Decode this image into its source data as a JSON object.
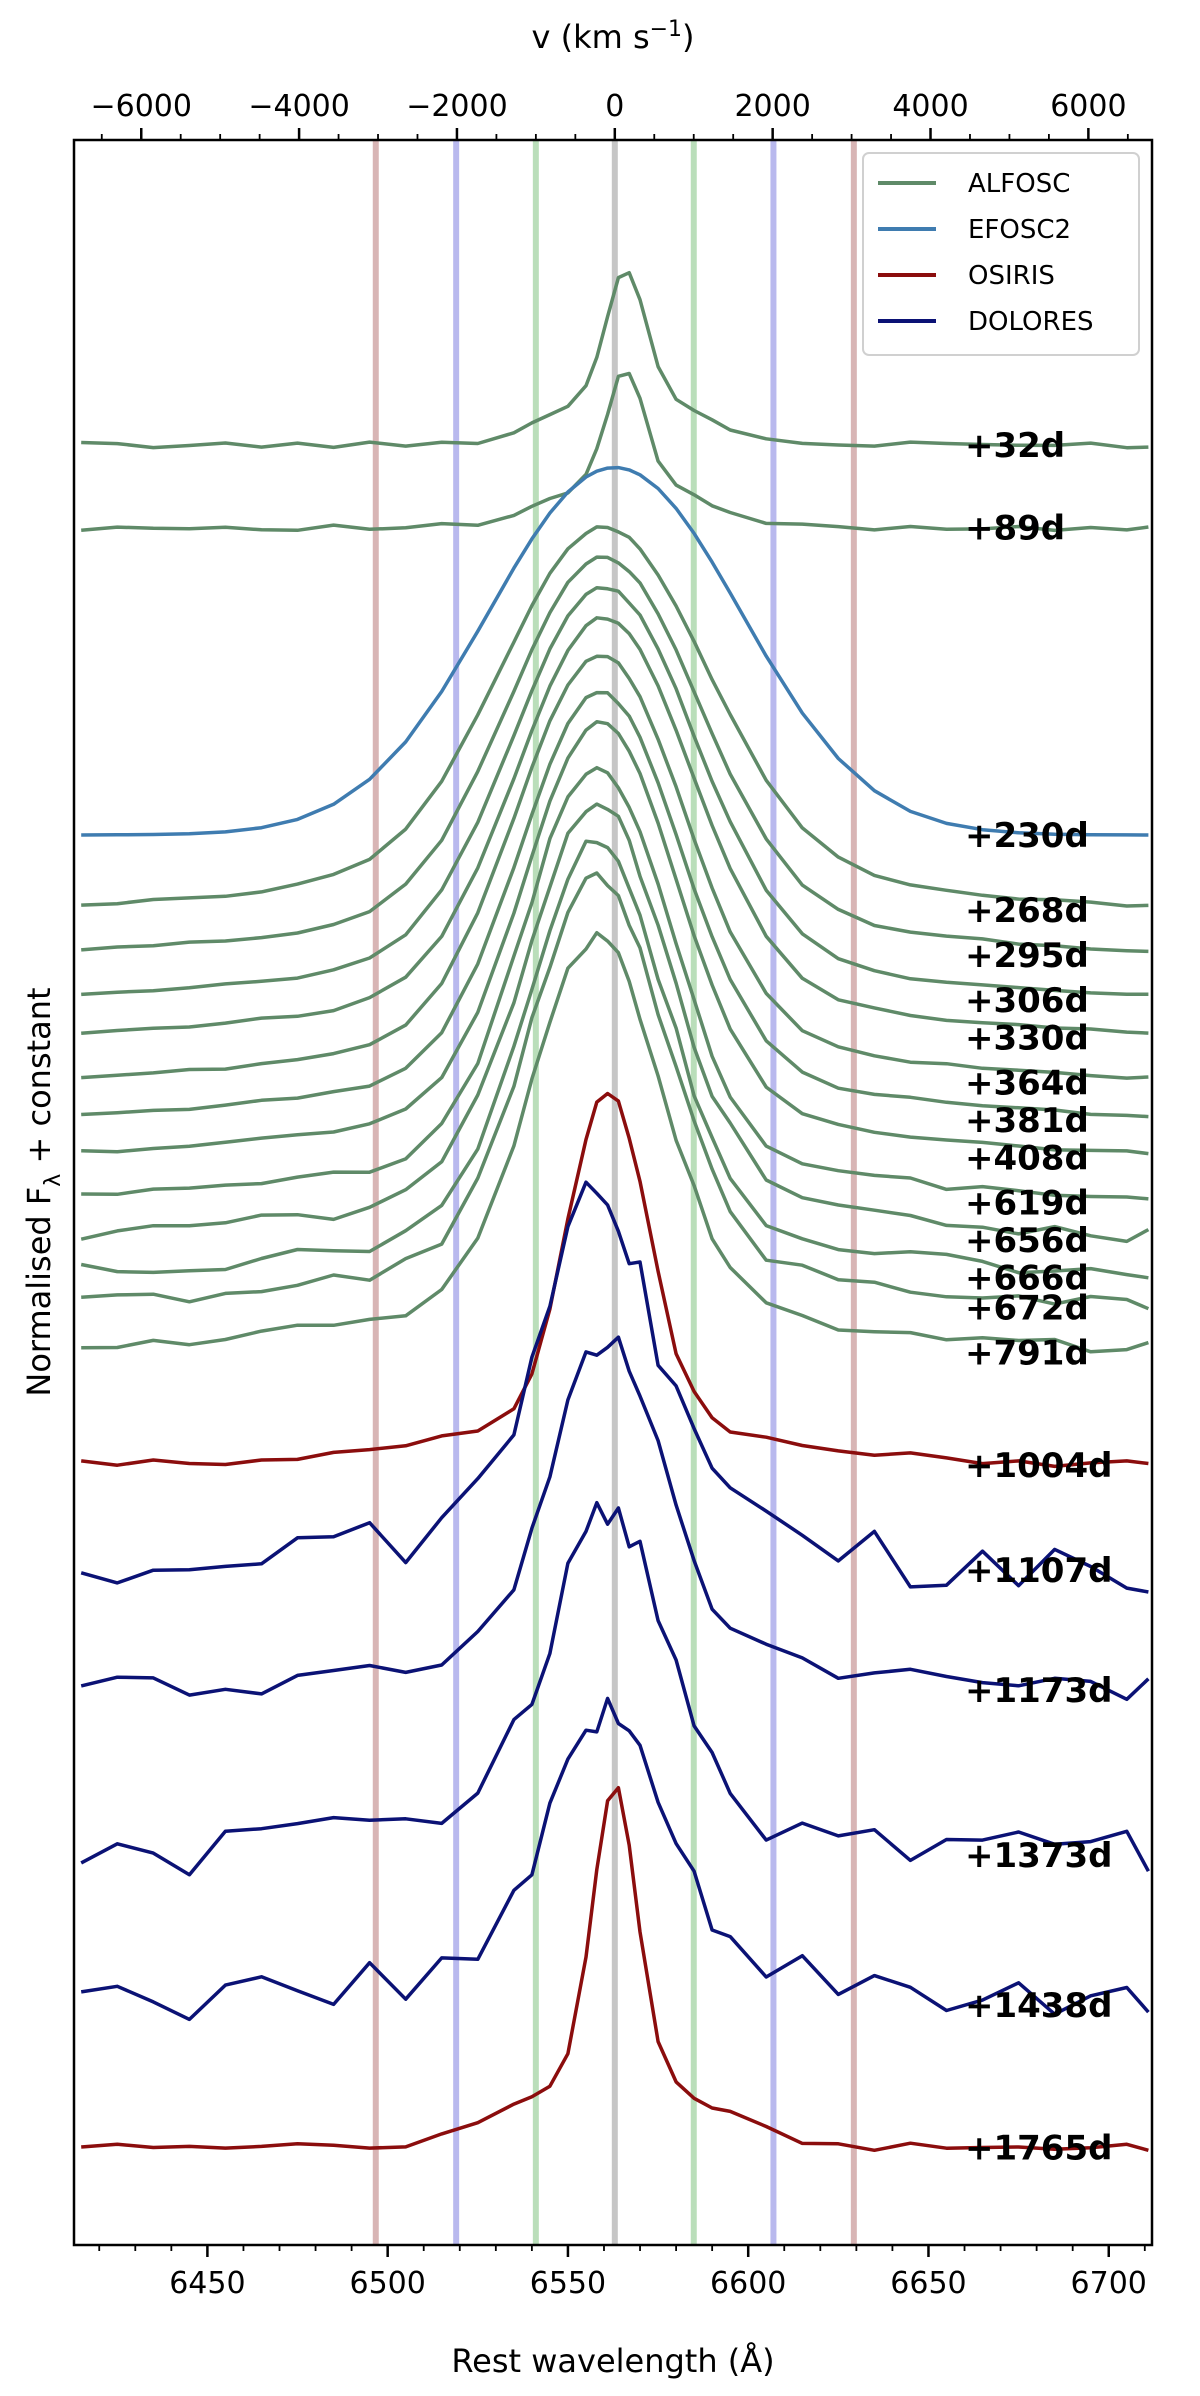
{
  "chart_data": {
    "type": "line",
    "xlabel": "Rest wavelength (Å)",
    "ylabel_main": "Normalised F",
    "ylabel_sub": "λ",
    "ylabel_rest": " + constant",
    "top_xlabel_main": "v (km s",
    "top_xlabel_sup": "−1",
    "top_xlabel_end": ")",
    "xlim": [
      6413,
      6712
    ],
    "x_ticks": [
      6450,
      6500,
      6550,
      6600,
      6650,
      6700
    ],
    "x_tick_labels": [
      "6450",
      "6500",
      "6550",
      "6600",
      "6650",
      "6700"
    ],
    "top_ticks_kms": [
      -6000,
      -4000,
      -2000,
      0,
      2000,
      4000,
      6000
    ],
    "top_tick_labels": [
      "−6000",
      "−4000",
      "−2000",
      "0",
      "2000",
      "4000",
      "6000"
    ],
    "rest_wavelength": 6563,
    "colors": {
      "ALFOSC": "#5f8a68",
      "EFOSC2": "#3f7cb0",
      "OSIRIS": "#8b0d0d",
      "DOLORES": "#0b1275"
    },
    "vlines": [
      {
        "x": 6496.7,
        "color": "#cfa3a3"
      },
      {
        "x": 6519.0,
        "color": "#a8a8ea"
      },
      {
        "x": 6541.1,
        "color": "#a9d6a9"
      },
      {
        "x": 6563.0,
        "color": "#b8b8b8"
      },
      {
        "x": 6584.9,
        "color": "#a9d6a9"
      },
      {
        "x": 6607.0,
        "color": "#a8a8ea"
      },
      {
        "x": 6629.3,
        "color": "#cfa3a3"
      }
    ],
    "legend": [
      {
        "label": "ALFOSC",
        "instrument": "ALFOSC"
      },
      {
        "label": "EFOSC2",
        "instrument": "EFOSC2"
      },
      {
        "label": "OSIRIS",
        "instrument": "OSIRIS"
      },
      {
        "label": "DOLORES",
        "instrument": "DOLORES"
      }
    ],
    "legend_position": "top-right",
    "x": [
      6415,
      6425,
      6435,
      6445,
      6455,
      6465,
      6475,
      6485,
      6495,
      6505,
      6515,
      6525,
      6535,
      6540,
      6545,
      6550,
      6555,
      6558,
      6561,
      6564,
      6567,
      6570,
      6575,
      6580,
      6585,
      6590,
      6595,
      6605,
      6615,
      6625,
      6635,
      6645,
      6655,
      6665,
      6675,
      6685,
      6695,
      6705,
      6711
    ],
    "shape_x": [
      -150,
      -100,
      -80,
      -60,
      -45,
      -35,
      -28,
      -22,
      -18,
      -15,
      -12,
      -9,
      -6,
      -3,
      0,
      3,
      6,
      9,
      12,
      15,
      18,
      22,
      28,
      35,
      45,
      60,
      80,
      100,
      150
    ],
    "series": [
      {
        "label": "+32d",
        "instrument": "ALFOSC",
        "base": 0.0,
        "amp": 0.78,
        "center": 6566,
        "width": 5,
        "broad_amp": 0.4,
        "broad_width": 18,
        "noise": 0.02
      },
      {
        "label": "+89d",
        "instrument": "ALFOSC",
        "base": -0.55,
        "amp": 0.7,
        "center": 6566,
        "width": 5,
        "broad_amp": 0.35,
        "broad_width": 18,
        "noise": 0.02
      },
      {
        "label": "+230d",
        "instrument": "EFOSC2",
        "base": -2.6,
        "amp": 2.45,
        "center": 6563,
        "width": 35,
        "broad_amp": 0.0,
        "broad_width": 60,
        "noise": 0.0
      },
      {
        "label": "+268d",
        "instrument": "ALFOSC",
        "base": -3.1,
        "amp": 2.25,
        "center": 6560,
        "width": 28,
        "broad_amp": 0.3,
        "broad_width": 70,
        "noise": 0.01
      },
      {
        "label": "+295d",
        "instrument": "ALFOSC",
        "base": -3.4,
        "amp": 2.35,
        "center": 6560,
        "width": 26,
        "broad_amp": 0.3,
        "broad_width": 70,
        "noise": 0.01
      },
      {
        "label": "+306d",
        "instrument": "ALFOSC",
        "base": -3.7,
        "amp": 2.45,
        "center": 6560,
        "width": 25,
        "broad_amp": 0.3,
        "broad_width": 70,
        "noise": 0.01
      },
      {
        "label": "+330d",
        "instrument": "ALFOSC",
        "base": -3.95,
        "amp": 2.5,
        "center": 6560,
        "width": 24,
        "broad_amp": 0.3,
        "broad_width": 70,
        "noise": 0.01
      },
      {
        "label": "+364d",
        "instrument": "ALFOSC",
        "base": -4.25,
        "amp": 2.55,
        "center": 6559,
        "width": 23,
        "broad_amp": 0.3,
        "broad_width": 70,
        "noise": 0.01
      },
      {
        "label": "+381d",
        "instrument": "ALFOSC",
        "base": -4.5,
        "amp": 2.55,
        "center": 6559,
        "width": 22,
        "broad_amp": 0.3,
        "broad_width": 70,
        "noise": 0.01
      },
      {
        "label": "+408d",
        "instrument": "ALFOSC",
        "base": -4.75,
        "amp": 2.6,
        "center": 6559,
        "width": 21,
        "broad_amp": 0.3,
        "broad_width": 70,
        "noise": 0.01
      },
      {
        "label": "+619d",
        "instrument": "ALFOSC",
        "base": -5.05,
        "amp": 2.6,
        "center": 6558,
        "width": 20,
        "broad_amp": 0.3,
        "broad_width": 70,
        "noise": 0.03
      },
      {
        "label": "+656d",
        "instrument": "ALFOSC",
        "base": -5.3,
        "amp": 2.6,
        "center": 6558,
        "width": 20,
        "broad_amp": 0.3,
        "broad_width": 70,
        "noise": 0.05
      },
      {
        "label": "+666d",
        "instrument": "ALFOSC",
        "base": -5.55,
        "amp": 2.6,
        "center": 6558,
        "width": 19,
        "broad_amp": 0.3,
        "broad_width": 70,
        "noise": 0.05
      },
      {
        "label": "+672d",
        "instrument": "ALFOSC",
        "base": -5.75,
        "amp": 2.55,
        "center": 6558,
        "width": 19,
        "broad_amp": 0.3,
        "broad_width": 70,
        "noise": 0.05
      },
      {
        "label": "+791d",
        "instrument": "ALFOSC",
        "base": -6.05,
        "amp": 2.45,
        "center": 6558,
        "width": 18,
        "broad_amp": 0.3,
        "broad_width": 70,
        "noise": 0.05
      },
      {
        "label": "+1004d",
        "instrument": "OSIRIS",
        "base": -6.8,
        "amp": 2.2,
        "center": 6561,
        "width": 11,
        "broad_amp": 0.3,
        "broad_width": 45,
        "noise": 0.03
      },
      {
        "label": "+1107d",
        "instrument": "DOLORES",
        "base": -7.5,
        "amp": 2.2,
        "center": 6558,
        "width": 16,
        "broad_amp": 0.3,
        "broad_width": 50,
        "noise": 0.18
      },
      {
        "label": "+1173d",
        "instrument": "DOLORES",
        "base": -8.3,
        "amp": 2.05,
        "center": 6561,
        "width": 15,
        "broad_amp": 0.3,
        "broad_width": 50,
        "noise": 0.08
      },
      {
        "label": "+1373d",
        "instrument": "DOLORES",
        "base": -9.4,
        "amp": 2.0,
        "center": 6561,
        "width": 16,
        "broad_amp": 0.3,
        "broad_width": 50,
        "noise": 0.16
      },
      {
        "label": "+1438d",
        "instrument": "DOLORES",
        "base": -10.4,
        "amp": 1.6,
        "center": 6561,
        "width": 17,
        "broad_amp": 0.3,
        "broad_width": 50,
        "noise": 0.16
      },
      {
        "label": "+1765d",
        "instrument": "OSIRIS",
        "base": -11.35,
        "amp": 1.9,
        "center": 6563,
        "width": 6,
        "broad_amp": 0.5,
        "broad_width": 25,
        "noise": 0.03
      }
    ]
  }
}
